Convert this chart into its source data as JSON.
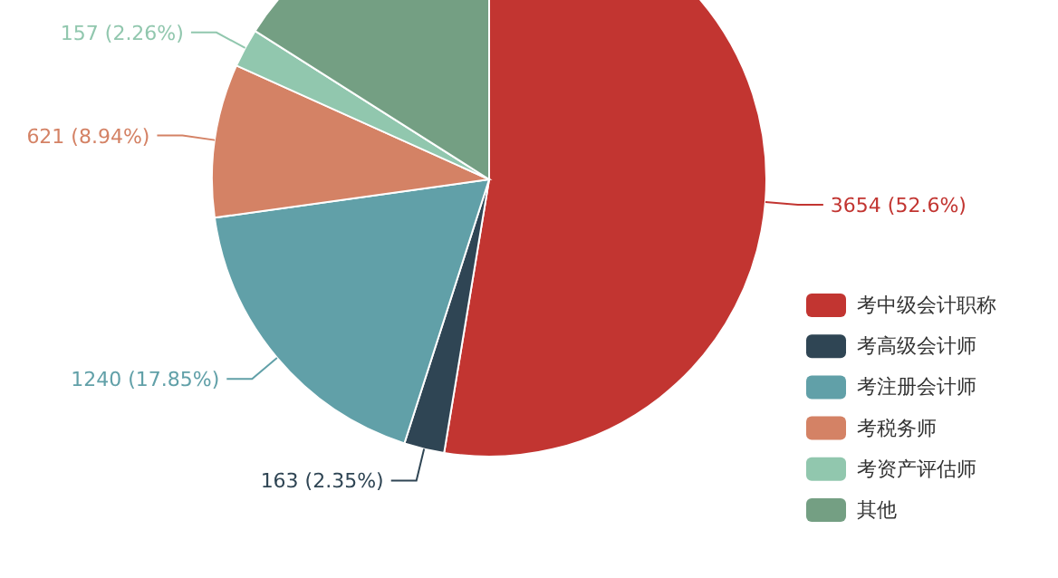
{
  "chart_data": {
    "type": "pie",
    "categories": [
      "考中级会计职称",
      "考高级会计师",
      "考注册会计师",
      "考税务师",
      "考资产评估师",
      "其他"
    ],
    "values": [
      3654,
      163,
      1240,
      621,
      157,
      1112
    ],
    "value_labels": [
      "3654 (52.6%)",
      "163 (2.35%)",
      "1240 (17.85%)",
      "621 (8.94%)",
      "157 (2.26%)",
      null
    ],
    "colors": [
      "#c23531",
      "#2f4554",
      "#61a0a8",
      "#d48265",
      "#91c7ae",
      "#749f83"
    ],
    "legend": "bottom right"
  }
}
